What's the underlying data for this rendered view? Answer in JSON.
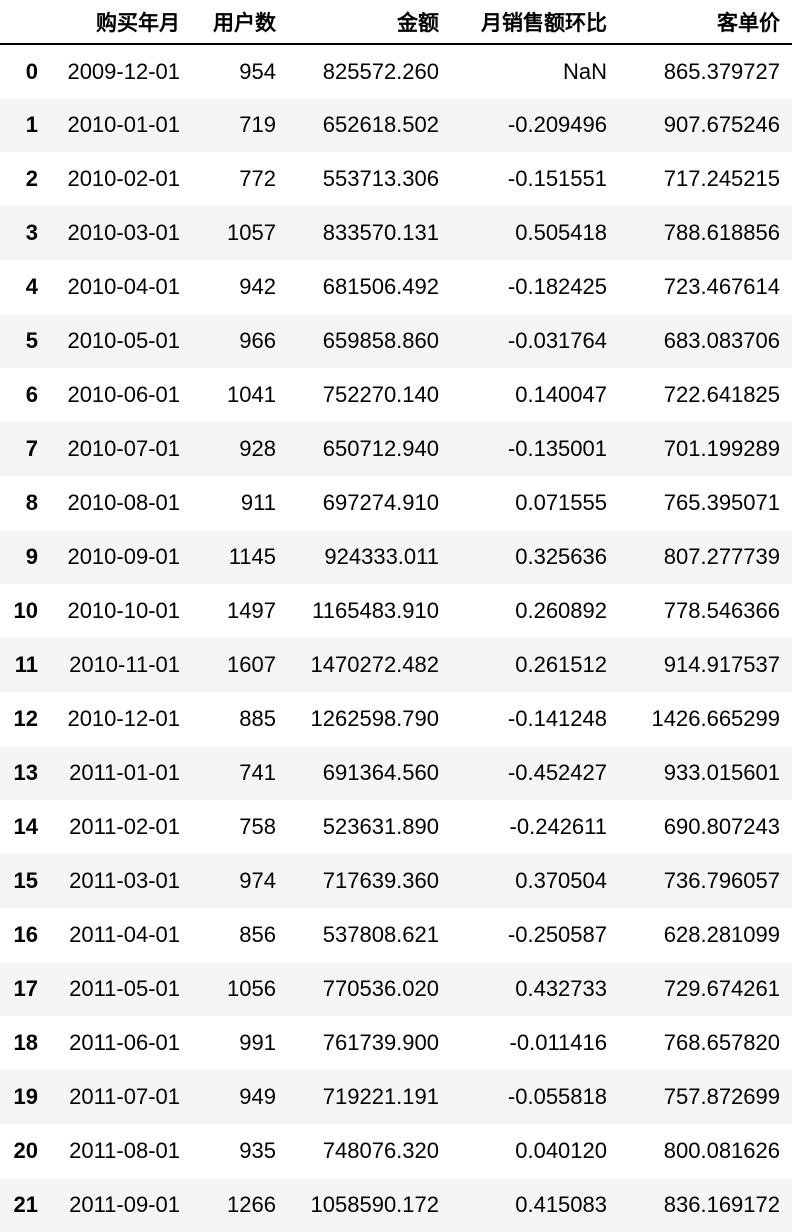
{
  "table": {
    "columns": [
      "",
      "购买年月",
      "用户数",
      "金额",
      "月销售额环比",
      "客单价"
    ],
    "rows": [
      [
        "0",
        "2009-12-01",
        "954",
        "825572.260",
        "NaN",
        "865.379727"
      ],
      [
        "1",
        "2010-01-01",
        "719",
        "652618.502",
        "-0.209496",
        "907.675246"
      ],
      [
        "2",
        "2010-02-01",
        "772",
        "553713.306",
        "-0.151551",
        "717.245215"
      ],
      [
        "3",
        "2010-03-01",
        "1057",
        "833570.131",
        "0.505418",
        "788.618856"
      ],
      [
        "4",
        "2010-04-01",
        "942",
        "681506.492",
        "-0.182425",
        "723.467614"
      ],
      [
        "5",
        "2010-05-01",
        "966",
        "659858.860",
        "-0.031764",
        "683.083706"
      ],
      [
        "6",
        "2010-06-01",
        "1041",
        "752270.140",
        "0.140047",
        "722.641825"
      ],
      [
        "7",
        "2010-07-01",
        "928",
        "650712.940",
        "-0.135001",
        "701.199289"
      ],
      [
        "8",
        "2010-08-01",
        "911",
        "697274.910",
        "0.071555",
        "765.395071"
      ],
      [
        "9",
        "2010-09-01",
        "1145",
        "924333.011",
        "0.325636",
        "807.277739"
      ],
      [
        "10",
        "2010-10-01",
        "1497",
        "1165483.910",
        "0.260892",
        "778.546366"
      ],
      [
        "11",
        "2010-11-01",
        "1607",
        "1470272.482",
        "0.261512",
        "914.917537"
      ],
      [
        "12",
        "2010-12-01",
        "885",
        "1262598.790",
        "-0.141248",
        "1426.665299"
      ],
      [
        "13",
        "2011-01-01",
        "741",
        "691364.560",
        "-0.452427",
        "933.015601"
      ],
      [
        "14",
        "2011-02-01",
        "758",
        "523631.890",
        "-0.242611",
        "690.807243"
      ],
      [
        "15",
        "2011-03-01",
        "974",
        "717639.360",
        "0.370504",
        "736.796057"
      ],
      [
        "16",
        "2011-04-01",
        "856",
        "537808.621",
        "-0.250587",
        "628.281099"
      ],
      [
        "17",
        "2011-05-01",
        "1056",
        "770536.020",
        "0.432733",
        "729.674261"
      ],
      [
        "18",
        "2011-06-01",
        "991",
        "761739.900",
        "-0.011416",
        "768.657820"
      ],
      [
        "19",
        "2011-07-01",
        "949",
        "719221.191",
        "-0.055818",
        "757.872699"
      ],
      [
        "20",
        "2011-08-01",
        "935",
        "748076.320",
        "0.040120",
        "800.081626"
      ],
      [
        "21",
        "2011-09-01",
        "1266",
        "1058590.172",
        "0.415083",
        "836.169172"
      ]
    ]
  }
}
